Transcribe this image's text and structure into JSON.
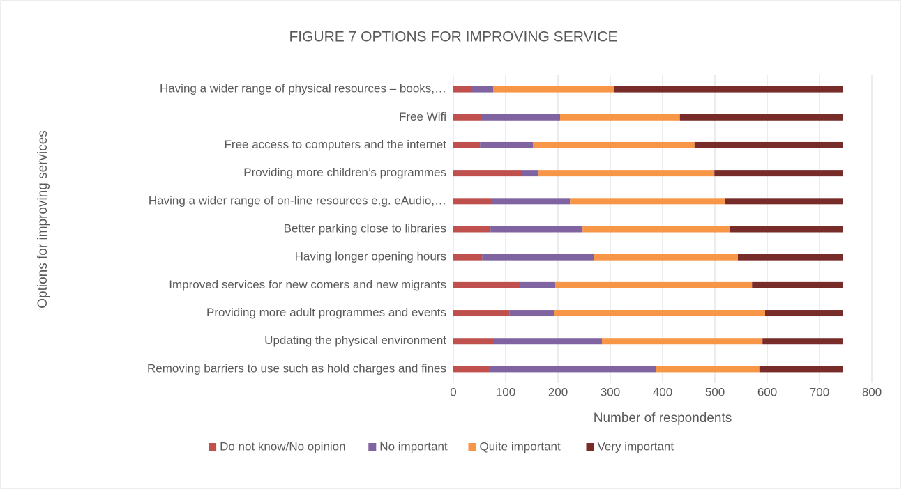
{
  "chart_data": {
    "type": "bar",
    "orientation": "horizontal",
    "stacked": true,
    "title": "FIGURE 7 OPTIONS FOR IMPROVING SERVICE",
    "x_label": "Number of respondents",
    "y_label": "Options for improving services",
    "categories": [
      "Having a wider range of physical resources – books,…",
      "Free Wifi",
      "Free access to computers and the internet",
      "Providing more children’s programmes",
      "Having a wider range of on-line resources e.g. eAudio,…",
      "Better parking close to libraries",
      "Having longer opening hours",
      "Improved services for new comers and new migrants",
      "Providing more adult programmes and events",
      "Updating the physical environment",
      "Removing barriers to use such as hold charges and fines"
    ],
    "series": [
      {
        "name": "Do not know/No opinion",
        "color": "#c0504d",
        "values": [
          36,
          53,
          51,
          131,
          72,
          71,
          55,
          128,
          107,
          76,
          68
        ]
      },
      {
        "name": "No important",
        "color": "#8064a2",
        "values": [
          40,
          151,
          101,
          32,
          151,
          176,
          213,
          67,
          86,
          208,
          320
        ]
      },
      {
        "name": "Quite important",
        "color": "#f79646",
        "values": [
          232,
          229,
          309,
          336,
          297,
          282,
          276,
          376,
          403,
          307,
          197
        ]
      },
      {
        "name": "Very important",
        "color": "#772c2a",
        "values": [
          437,
          312,
          284,
          246,
          225,
          216,
          201,
          174,
          149,
          154,
          160
        ]
      }
    ],
    "xlim": [
      0,
      800
    ],
    "xticks": [
      0,
      100,
      200,
      300,
      400,
      500,
      600,
      700,
      800
    ],
    "grid": true,
    "legend": "bottom"
  }
}
